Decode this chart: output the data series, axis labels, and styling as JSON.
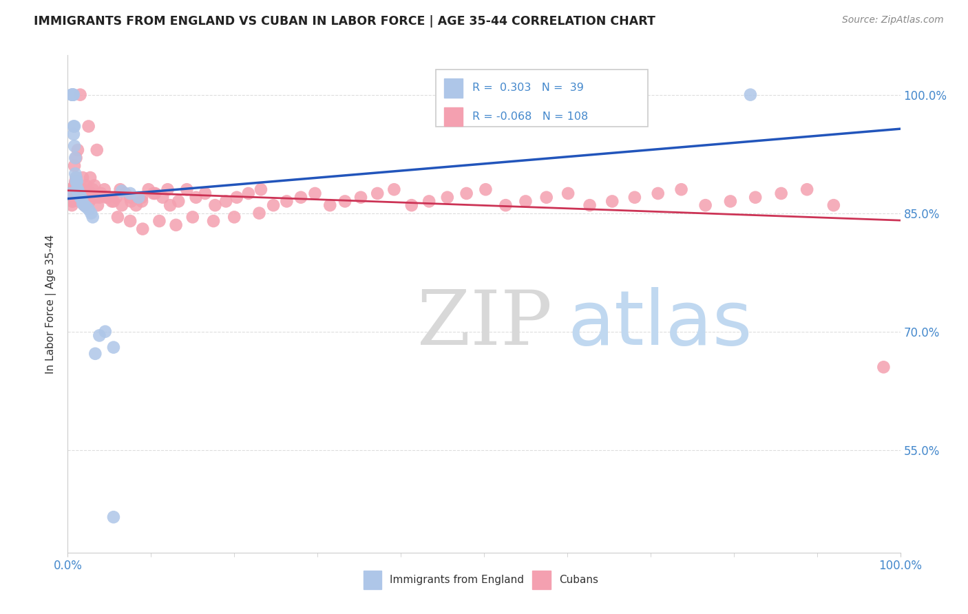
{
  "title": "IMMIGRANTS FROM ENGLAND VS CUBAN IN LABOR FORCE | AGE 35-44 CORRELATION CHART",
  "source": "Source: ZipAtlas.com",
  "ylabel": "In Labor Force | Age 35-44",
  "xlim": [
    0.0,
    1.0
  ],
  "ylim": [
    0.42,
    1.05
  ],
  "yticks": [
    0.55,
    0.7,
    0.85,
    1.0
  ],
  "ytick_labels": [
    "55.0%",
    "70.0%",
    "85.0%",
    "100.0%"
  ],
  "xtick_labels": [
    "0.0%",
    "100.0%"
  ],
  "england_r": 0.303,
  "england_n": 39,
  "cuban_r": -0.068,
  "cuban_n": 108,
  "england_color": "#aec6e8",
  "cuban_color": "#f4a0b0",
  "england_line_color": "#2255bb",
  "cuban_line_color": "#cc3355",
  "background_color": "#ffffff",
  "grid_color": "#dddddd",
  "title_color": "#222222",
  "axis_label_color": "#333333",
  "tick_label_color": "#4488cc",
  "source_color": "#888888",
  "watermark_zip_color": "#d8d8d8",
  "watermark_atlas_color": "#c0d8f0",
  "legend_edge_color": "#cccccc",
  "england_x": [
    0.003,
    0.005,
    0.005,
    0.006,
    0.006,
    0.007,
    0.007,
    0.007,
    0.008,
    0.008,
    0.009,
    0.009,
    0.01,
    0.01,
    0.011,
    0.011,
    0.012,
    0.012,
    0.013,
    0.013,
    0.014,
    0.015,
    0.016,
    0.017,
    0.018,
    0.02,
    0.022,
    0.025,
    0.028,
    0.03,
    0.033,
    0.038,
    0.045,
    0.055,
    0.065,
    0.075,
    0.085,
    0.055,
    0.82
  ],
  "england_y": [
    0.875,
    1.0,
    1.0,
    1.0,
    1.0,
    1.0,
    0.96,
    0.95,
    0.96,
    0.935,
    0.92,
    0.9,
    0.895,
    0.89,
    0.89,
    0.88,
    0.88,
    0.878,
    0.875,
    0.875,
    0.875,
    0.87,
    0.87,
    0.868,
    0.862,
    0.86,
    0.858,
    0.855,
    0.85,
    0.845,
    0.672,
    0.695,
    0.7,
    0.465,
    0.878,
    0.875,
    0.87,
    0.68,
    1.0
  ],
  "cuban_x": [
    0.002,
    0.003,
    0.004,
    0.005,
    0.005,
    0.006,
    0.007,
    0.008,
    0.009,
    0.01,
    0.011,
    0.012,
    0.013,
    0.014,
    0.015,
    0.016,
    0.017,
    0.018,
    0.019,
    0.02,
    0.021,
    0.022,
    0.024,
    0.026,
    0.028,
    0.03,
    0.033,
    0.036,
    0.04,
    0.044,
    0.048,
    0.053,
    0.058,
    0.063,
    0.069,
    0.075,
    0.082,
    0.089,
    0.097,
    0.105,
    0.114,
    0.123,
    0.133,
    0.143,
    0.154,
    0.165,
    0.177,
    0.19,
    0.203,
    0.217,
    0.232,
    0.247,
    0.263,
    0.28,
    0.297,
    0.315,
    0.333,
    0.352,
    0.372,
    0.392,
    0.413,
    0.434,
    0.456,
    0.479,
    0.502,
    0.526,
    0.55,
    0.575,
    0.601,
    0.627,
    0.654,
    0.681,
    0.709,
    0.737,
    0.766,
    0.796,
    0.826,
    0.857,
    0.888,
    0.92,
    0.015,
    0.025,
    0.035,
    0.01,
    0.008,
    0.012,
    0.018,
    0.022,
    0.027,
    0.032,
    0.038,
    0.046,
    0.055,
    0.065,
    0.076,
    0.089,
    0.103,
    0.12,
    0.06,
    0.075,
    0.09,
    0.11,
    0.13,
    0.15,
    0.175,
    0.2,
    0.23,
    0.98
  ],
  "cuban_y": [
    0.87,
    0.88,
    0.87,
    0.865,
    0.86,
    0.865,
    0.88,
    0.885,
    0.89,
    0.895,
    0.88,
    0.875,
    0.87,
    0.865,
    0.87,
    0.875,
    0.88,
    0.87,
    0.865,
    0.86,
    0.875,
    0.88,
    0.87,
    0.865,
    0.875,
    0.88,
    0.87,
    0.86,
    0.875,
    0.88,
    0.87,
    0.865,
    0.87,
    0.88,
    0.875,
    0.87,
    0.86,
    0.865,
    0.88,
    0.875,
    0.87,
    0.86,
    0.865,
    0.88,
    0.87,
    0.875,
    0.86,
    0.865,
    0.87,
    0.875,
    0.88,
    0.86,
    0.865,
    0.87,
    0.875,
    0.86,
    0.865,
    0.87,
    0.875,
    0.88,
    0.86,
    0.865,
    0.87,
    0.875,
    0.88,
    0.86,
    0.865,
    0.87,
    0.875,
    0.86,
    0.865,
    0.87,
    0.875,
    0.88,
    0.86,
    0.865,
    0.87,
    0.875,
    0.88,
    0.86,
    1.0,
    0.96,
    0.93,
    0.92,
    0.91,
    0.93,
    0.895,
    0.885,
    0.895,
    0.885,
    0.87,
    0.87,
    0.865,
    0.86,
    0.865,
    0.87,
    0.875,
    0.88,
    0.845,
    0.84,
    0.83,
    0.84,
    0.835,
    0.845,
    0.84,
    0.845,
    0.85,
    0.655
  ]
}
